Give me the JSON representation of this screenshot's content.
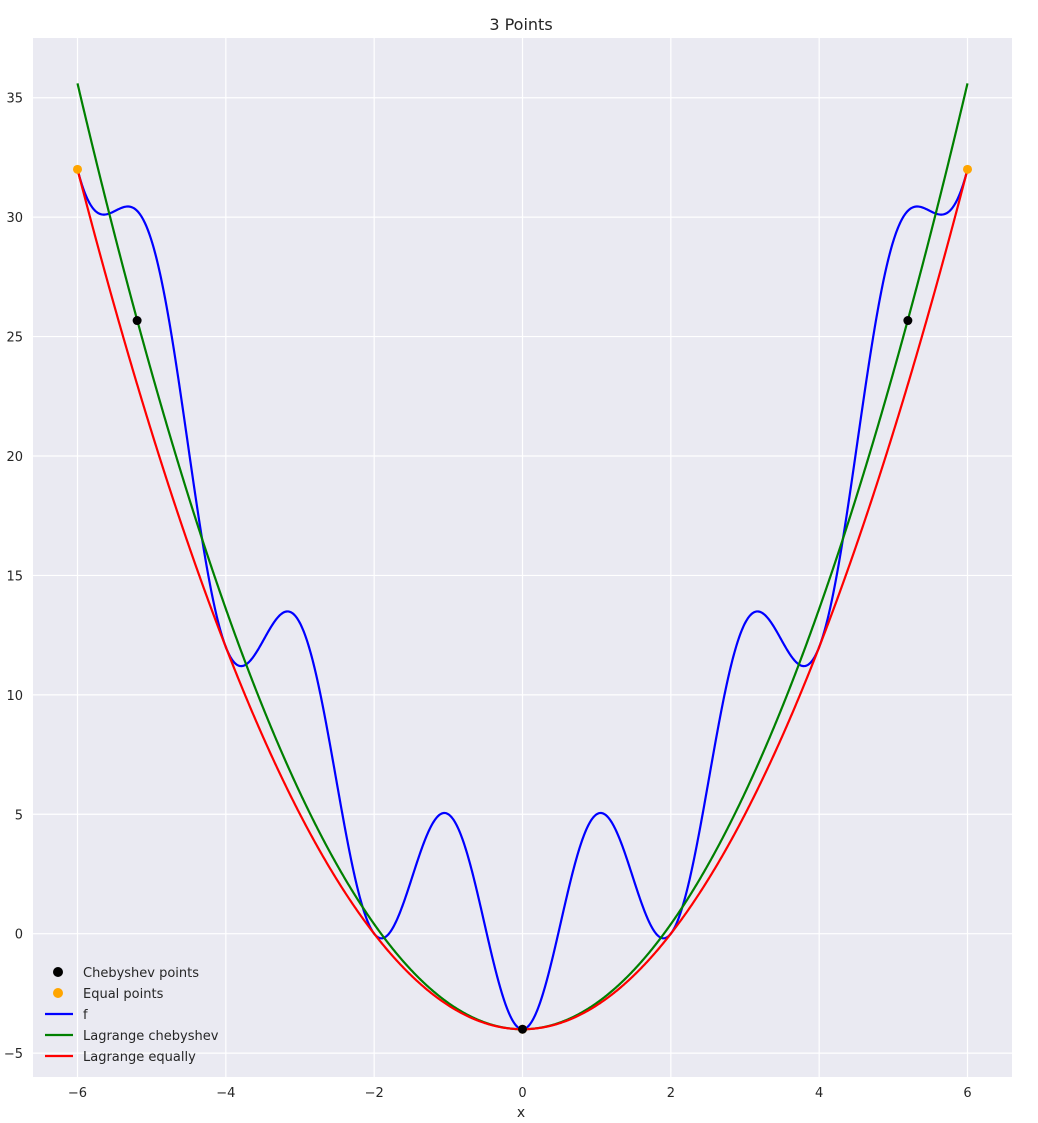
{
  "chart_data": {
    "type": "line",
    "title": "3 Points",
    "xlabel": "x",
    "ylabel": "",
    "xlim": [
      -6.6,
      6.6
    ],
    "ylim": [
      -6,
      37.5
    ],
    "xticks": [
      -6,
      -4,
      -2,
      0,
      2,
      4,
      6
    ],
    "xtick_labels": [
      "−6",
      "−4",
      "−2",
      "0",
      "2",
      "4",
      "6"
    ],
    "yticks": [
      -5,
      0,
      5,
      10,
      15,
      20,
      25,
      30,
      35
    ],
    "ytick_labels": [
      "−5",
      "0",
      "5",
      "10",
      "15",
      "20",
      "25",
      "30",
      "35"
    ],
    "grid": true,
    "legend_position": "lower-left",
    "colors": {
      "background": "#eaeaf2",
      "grid": "#ffffff",
      "f": "#0000ff",
      "chebyshev": "#008000",
      "equal": "#ff0000",
      "cheb_points": "#000000",
      "equal_points": "#ffa500"
    },
    "series": [
      {
        "name": "Chebyshev points",
        "kind": "scatter",
        "color": "#000000",
        "x": [
          -5.196,
          0,
          5.196
        ],
        "y": [
          25.67,
          -4.0,
          25.67
        ]
      },
      {
        "name": "Equal points",
        "kind": "scatter",
        "color": "#ffa500",
        "x": [
          -6,
          0,
          6
        ],
        "y": [
          32.0,
          -4.0,
          32.0
        ]
      },
      {
        "name": "f",
        "kind": "line",
        "color": "#0000ff",
        "formula": "x^2 + 4*sin^2(pi*x/2) * ... ≈ x^2 - 4*cos(pi*x)",
        "x_range": [
          -6,
          6
        ]
      },
      {
        "name": "Lagrange chebyshev",
        "kind": "line",
        "color": "#008000",
        "x": [
          -6,
          -5,
          -4,
          -3,
          -2,
          -1,
          0,
          1,
          2,
          3,
          4,
          5,
          6
        ],
        "y": [
          35.6,
          23.8,
          13.7,
          5.5,
          -0.4,
          -3.0,
          -4.0,
          -3.0,
          -0.4,
          5.5,
          13.7,
          23.8,
          35.6
        ]
      },
      {
        "name": "Lagrange equally",
        "kind": "line",
        "color": "#ff0000",
        "x": [
          -6,
          -5,
          -4,
          -3,
          -2,
          -1,
          0,
          1,
          2,
          3,
          4,
          5,
          6
        ],
        "y": [
          32.0,
          21.0,
          12.0,
          5.0,
          0.0,
          -3.0,
          -4.0,
          -3.0,
          0.0,
          5.0,
          12.0,
          21.0,
          32.0
        ]
      }
    ]
  }
}
